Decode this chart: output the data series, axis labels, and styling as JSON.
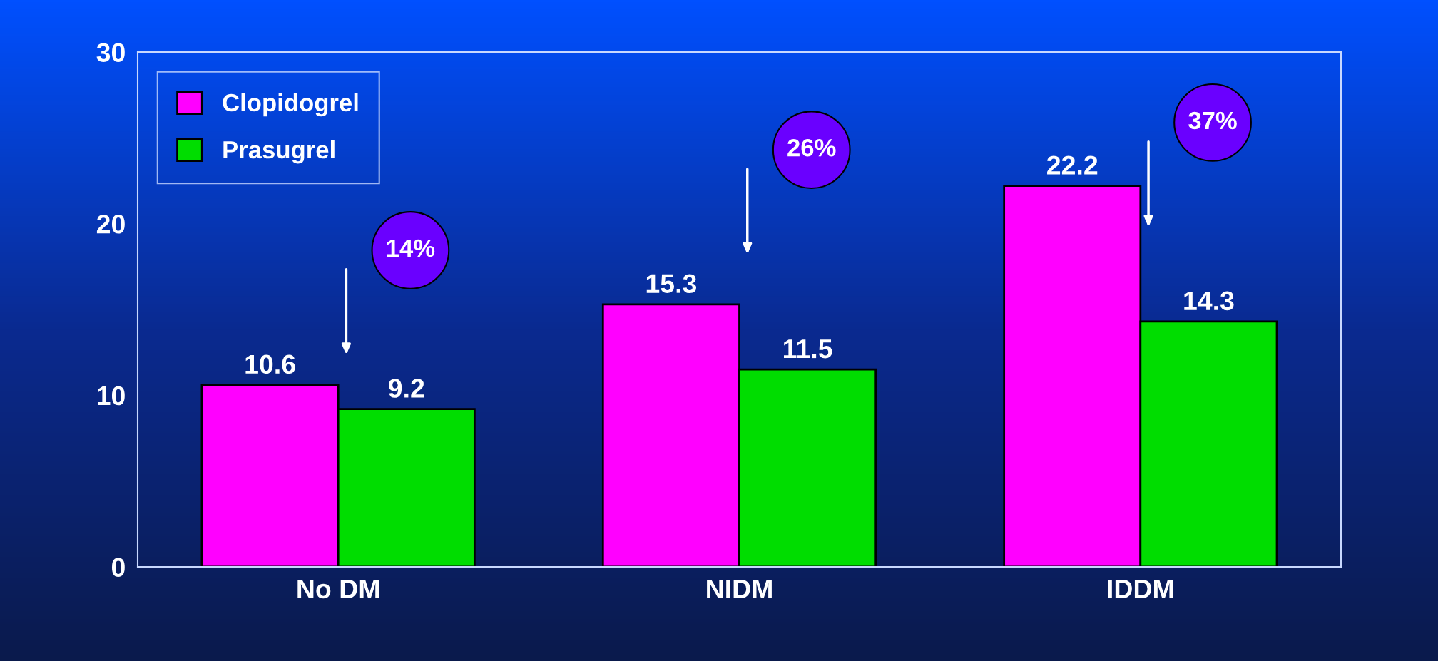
{
  "chart_data": {
    "type": "bar",
    "categories": [
      "No DM",
      "NIDM",
      "IDDM"
    ],
    "series": [
      {
        "name": "Clopidogrel",
        "color": "#ff00ff",
        "values": [
          10.6,
          15.3,
          22.2
        ]
      },
      {
        "name": "Prasugrel",
        "color": "#00dd00",
        "values": [
          9.2,
          11.5,
          14.3
        ]
      }
    ],
    "ylim": [
      0,
      30
    ],
    "yticks": [
      0,
      10,
      20,
      30
    ],
    "data_labels": true,
    "legend": "top left",
    "grid": false,
    "annotations": [
      "14%",
      "26%",
      "37%"
    ]
  }
}
